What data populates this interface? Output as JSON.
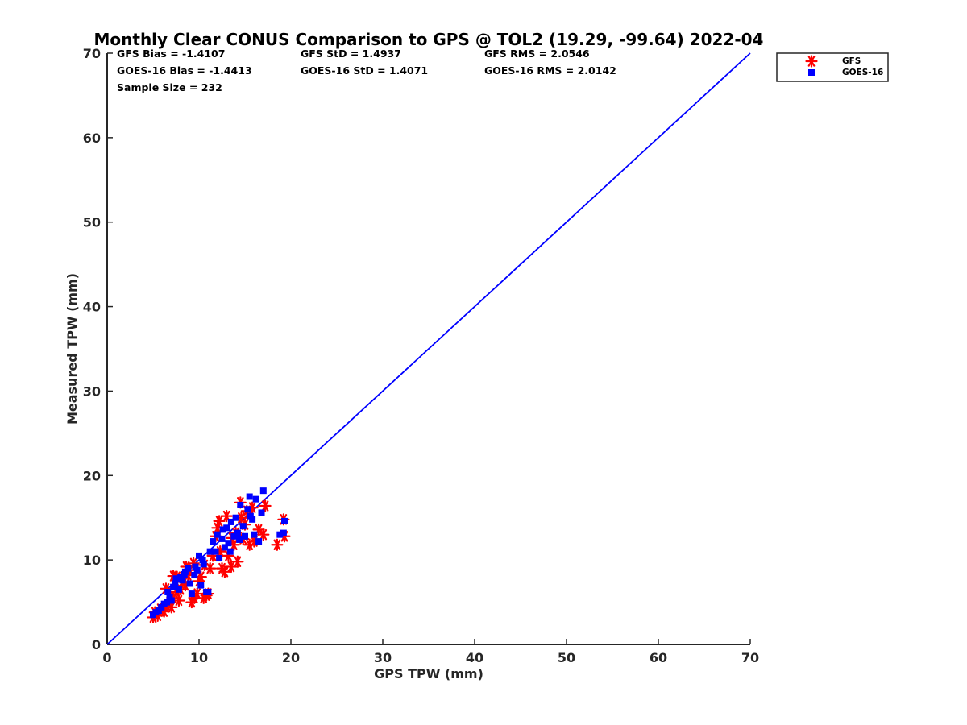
{
  "chart_data": {
    "type": "scatter",
    "title": "Monthly Clear CONUS Comparison to GPS @ TOL2 (19.29, -99.64) 2022-04",
    "xlabel": "GPS TPW (mm)",
    "ylabel": "Measured TPW (mm)",
    "xlim": [
      0,
      70
    ],
    "ylim": [
      0,
      70
    ],
    "xticks": [
      "0",
      "10",
      "20",
      "30",
      "40",
      "50",
      "60",
      "70"
    ],
    "yticks": [
      "0",
      "10",
      "20",
      "30",
      "40",
      "50",
      "60",
      "70"
    ],
    "stats": {
      "gfs_bias": "GFS Bias = -1.4107",
      "gfs_std": "GFS StD = 1.4937",
      "gfs_rms": "GFS RMS = 2.0546",
      "goes_bias": "GOES-16 Bias = -1.4413",
      "goes_std": "GOES-16 StD = 1.4071",
      "goes_rms": "GOES-16 RMS = 2.0142",
      "sample_size": "Sample Size = 232"
    },
    "legend_position": "top-right outside",
    "reference_line": {
      "name": "1:1 line",
      "points": [
        [
          0,
          0
        ],
        [
          70,
          70
        ]
      ],
      "color": "#0000ff"
    },
    "series": [
      {
        "name": "GFS",
        "marker": "asterisk",
        "color": "#ff0000",
        "points": [
          [
            5.0,
            3.2
          ],
          [
            5.2,
            3.8
          ],
          [
            5.5,
            3.4
          ],
          [
            5.8,
            4.2
          ],
          [
            6.0,
            4.0
          ],
          [
            6.2,
            3.9
          ],
          [
            6.5,
            4.6
          ],
          [
            6.8,
            5.0
          ],
          [
            7.0,
            4.4
          ],
          [
            7.2,
            5.5
          ],
          [
            7.5,
            6.2
          ],
          [
            7.8,
            5.2
          ],
          [
            8.0,
            6.5
          ],
          [
            8.2,
            7.4
          ],
          [
            8.5,
            7.0
          ],
          [
            8.8,
            8.2
          ],
          [
            9.0,
            8.8
          ],
          [
            9.2,
            5.0
          ],
          [
            9.5,
            5.5
          ],
          [
            9.8,
            6.0
          ],
          [
            10.0,
            7.5
          ],
          [
            10.2,
            8.0
          ],
          [
            10.5,
            5.5
          ],
          [
            10.8,
            5.8
          ],
          [
            11.0,
            6.0
          ],
          [
            11.2,
            9.0
          ],
          [
            11.5,
            10.5
          ],
          [
            11.8,
            12.8
          ],
          [
            12.0,
            13.8
          ],
          [
            12.2,
            14.6
          ],
          [
            12.5,
            9.0
          ],
          [
            12.8,
            8.6
          ],
          [
            13.0,
            15.2
          ],
          [
            13.2,
            10.5
          ],
          [
            13.5,
            9.2
          ],
          [
            13.8,
            11.8
          ],
          [
            14.0,
            13.2
          ],
          [
            14.2,
            9.8
          ],
          [
            14.5,
            16.8
          ],
          [
            14.8,
            12.5
          ],
          [
            15.0,
            14.2
          ],
          [
            15.5,
            11.8
          ],
          [
            15.8,
            16.2
          ],
          [
            16.0,
            12.2
          ],
          [
            16.5,
            13.6
          ],
          [
            17.0,
            13.0
          ],
          [
            17.2,
            16.4
          ],
          [
            18.5,
            11.8
          ],
          [
            19.2,
            14.8
          ],
          [
            19.3,
            12.8
          ],
          [
            7.2,
            8.1
          ],
          [
            8.6,
            9.2
          ],
          [
            12.3,
            11.0
          ],
          [
            14.6,
            15.0
          ],
          [
            6.4,
            6.6
          ],
          [
            7.6,
            8.0
          ],
          [
            9.4,
            9.6
          ],
          [
            10.6,
            9.4
          ],
          [
            13.6,
            12.6
          ],
          [
            15.2,
            15.8
          ]
        ]
      },
      {
        "name": "GOES-16",
        "marker": "square",
        "color": "#0000ff",
        "points": [
          [
            5.0,
            3.5
          ],
          [
            5.3,
            3.8
          ],
          [
            5.6,
            4.0
          ],
          [
            5.9,
            4.4
          ],
          [
            6.2,
            4.8
          ],
          [
            6.5,
            5.0
          ],
          [
            6.8,
            5.6
          ],
          [
            7.0,
            5.2
          ],
          [
            7.2,
            6.8
          ],
          [
            7.5,
            7.8
          ],
          [
            7.8,
            6.5
          ],
          [
            8.0,
            8.0
          ],
          [
            8.2,
            7.6
          ],
          [
            8.5,
            8.6
          ],
          [
            8.8,
            9.0
          ],
          [
            9.0,
            7.2
          ],
          [
            9.2,
            6.0
          ],
          [
            9.5,
            8.2
          ],
          [
            9.8,
            8.8
          ],
          [
            10.0,
            10.5
          ],
          [
            10.2,
            7.0
          ],
          [
            10.5,
            9.5
          ],
          [
            10.8,
            6.2
          ],
          [
            11.0,
            6.2
          ],
          [
            11.2,
            11.0
          ],
          [
            11.5,
            12.2
          ],
          [
            11.8,
            11.0
          ],
          [
            12.0,
            13.0
          ],
          [
            12.2,
            10.2
          ],
          [
            12.5,
            12.5
          ],
          [
            12.8,
            11.5
          ],
          [
            13.0,
            13.8
          ],
          [
            13.2,
            12.0
          ],
          [
            13.5,
            14.5
          ],
          [
            13.8,
            12.8
          ],
          [
            14.0,
            15.0
          ],
          [
            14.2,
            13.2
          ],
          [
            14.5,
            16.5
          ],
          [
            14.8,
            14.0
          ],
          [
            15.0,
            12.8
          ],
          [
            15.3,
            16.0
          ],
          [
            15.5,
            17.5
          ],
          [
            15.8,
            14.8
          ],
          [
            16.0,
            13.0
          ],
          [
            16.2,
            17.2
          ],
          [
            16.5,
            12.2
          ],
          [
            16.8,
            15.6
          ],
          [
            17.0,
            18.2
          ],
          [
            18.8,
            13.0
          ],
          [
            19.2,
            13.2
          ],
          [
            19.3,
            14.6
          ],
          [
            7.4,
            7.2
          ],
          [
            8.4,
            8.3
          ],
          [
            9.6,
            9.2
          ],
          [
            12.6,
            13.6
          ],
          [
            13.4,
            11.0
          ],
          [
            14.4,
            12.4
          ],
          [
            15.6,
            15.2
          ],
          [
            6.6,
            6.2
          ],
          [
            10.4,
            10.0
          ]
        ]
      }
    ]
  }
}
